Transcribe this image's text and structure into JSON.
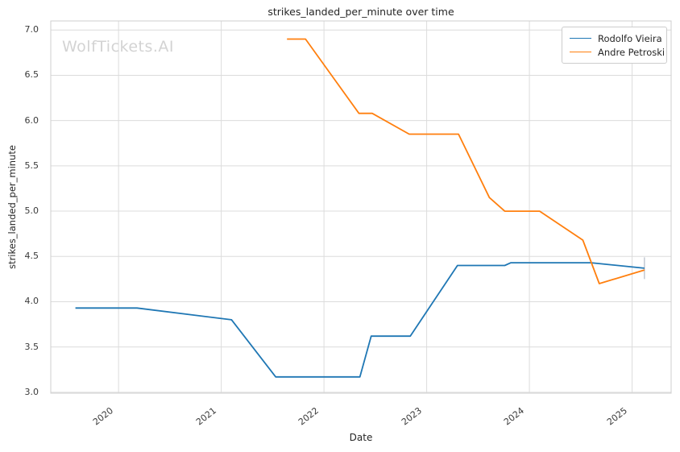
{
  "watermark": "WolfTickets.AI",
  "title": "strikes_landed_per_minute over time",
  "axes": {
    "x_label": "Date",
    "y_label": "strikes_landed_per_minute",
    "x_tick_labels": [
      "2020",
      "2021",
      "2022",
      "2023",
      "2024",
      "2025"
    ],
    "y_tick_labels": [
      "3.0",
      "3.5",
      "4.0",
      "4.5",
      "5.0",
      "5.5",
      "6.0",
      "6.5",
      "7.0"
    ]
  },
  "legend": {
    "items": [
      {
        "label": "Rodolfo Vieira",
        "color": "#1f77b4"
      },
      {
        "label": "Andre Petroski",
        "color": "#ff7f0e"
      }
    ]
  },
  "colors": {
    "background": "#ffffff",
    "grid": "#dcdcdc",
    "spine": "#cfcfcf",
    "text": "#262626",
    "tick_text": "#3a3a3a",
    "watermark": "#d3d3d3",
    "series_blue": "#1f77b4",
    "series_orange": "#ff7f0e",
    "end_tick": "#b9c0cc"
  },
  "chart_data": {
    "type": "line",
    "title": "strikes_landed_per_minute over time",
    "xlabel": "Date",
    "ylabel": "strikes_landed_per_minute",
    "xlim_years": [
      2019.34,
      2025.38
    ],
    "ylim": [
      2.99,
      7.1
    ],
    "x_tick_years": [
      2020,
      2021,
      2022,
      2023,
      2024,
      2025
    ],
    "y_tick_values": [
      3.0,
      3.5,
      4.0,
      4.5,
      5.0,
      5.5,
      6.0,
      6.5,
      7.0
    ],
    "grid": true,
    "legend_position": "upper right",
    "series": [
      {
        "name": "Rodolfo Vieira",
        "color": "#1f77b4",
        "points": [
          {
            "date": "2019-08",
            "x": 2019.58,
            "y": 3.93
          },
          {
            "date": "2020-03",
            "x": 2020.18,
            "y": 3.93
          },
          {
            "date": "2021-02",
            "x": 2021.1,
            "y": 3.8
          },
          {
            "date": "2021-07",
            "x": 2021.53,
            "y": 3.17
          },
          {
            "date": "2022-05",
            "x": 2022.35,
            "y": 3.17
          },
          {
            "date": "2022-06",
            "x": 2022.46,
            "y": 3.62
          },
          {
            "date": "2022-11",
            "x": 2022.84,
            "y": 3.62
          },
          {
            "date": "2023-04",
            "x": 2023.3,
            "y": 4.4
          },
          {
            "date": "2023-10",
            "x": 2023.76,
            "y": 4.4
          },
          {
            "date": "2023-11",
            "x": 2023.82,
            "y": 4.43
          },
          {
            "date": "2024-08",
            "x": 2024.6,
            "y": 4.43
          },
          {
            "date": "2025-02",
            "x": 2025.12,
            "y": 4.37
          }
        ]
      },
      {
        "name": "Andre Petroski",
        "color": "#ff7f0e",
        "points": [
          {
            "date": "2021-08",
            "x": 2021.64,
            "y": 6.9
          },
          {
            "date": "2021-10",
            "x": 2021.82,
            "y": 6.9
          },
          {
            "date": "2022-05",
            "x": 2022.34,
            "y": 6.08
          },
          {
            "date": "2022-06",
            "x": 2022.47,
            "y": 6.08
          },
          {
            "date": "2022-11",
            "x": 2022.83,
            "y": 5.85
          },
          {
            "date": "2023-04",
            "x": 2023.31,
            "y": 5.85
          },
          {
            "date": "2023-08",
            "x": 2023.61,
            "y": 5.15
          },
          {
            "date": "2023-10",
            "x": 2023.76,
            "y": 5.0
          },
          {
            "date": "2024-02",
            "x": 2024.1,
            "y": 5.0
          },
          {
            "date": "2024-07",
            "x": 2024.52,
            "y": 4.68
          },
          {
            "date": "2024-09",
            "x": 2024.68,
            "y": 4.2
          },
          {
            "date": "2025-02",
            "x": 2025.12,
            "y": 4.35
          }
        ]
      }
    ],
    "end_tick": {
      "x": 2025.12,
      "y_from": 4.25,
      "y_to": 4.49
    }
  }
}
